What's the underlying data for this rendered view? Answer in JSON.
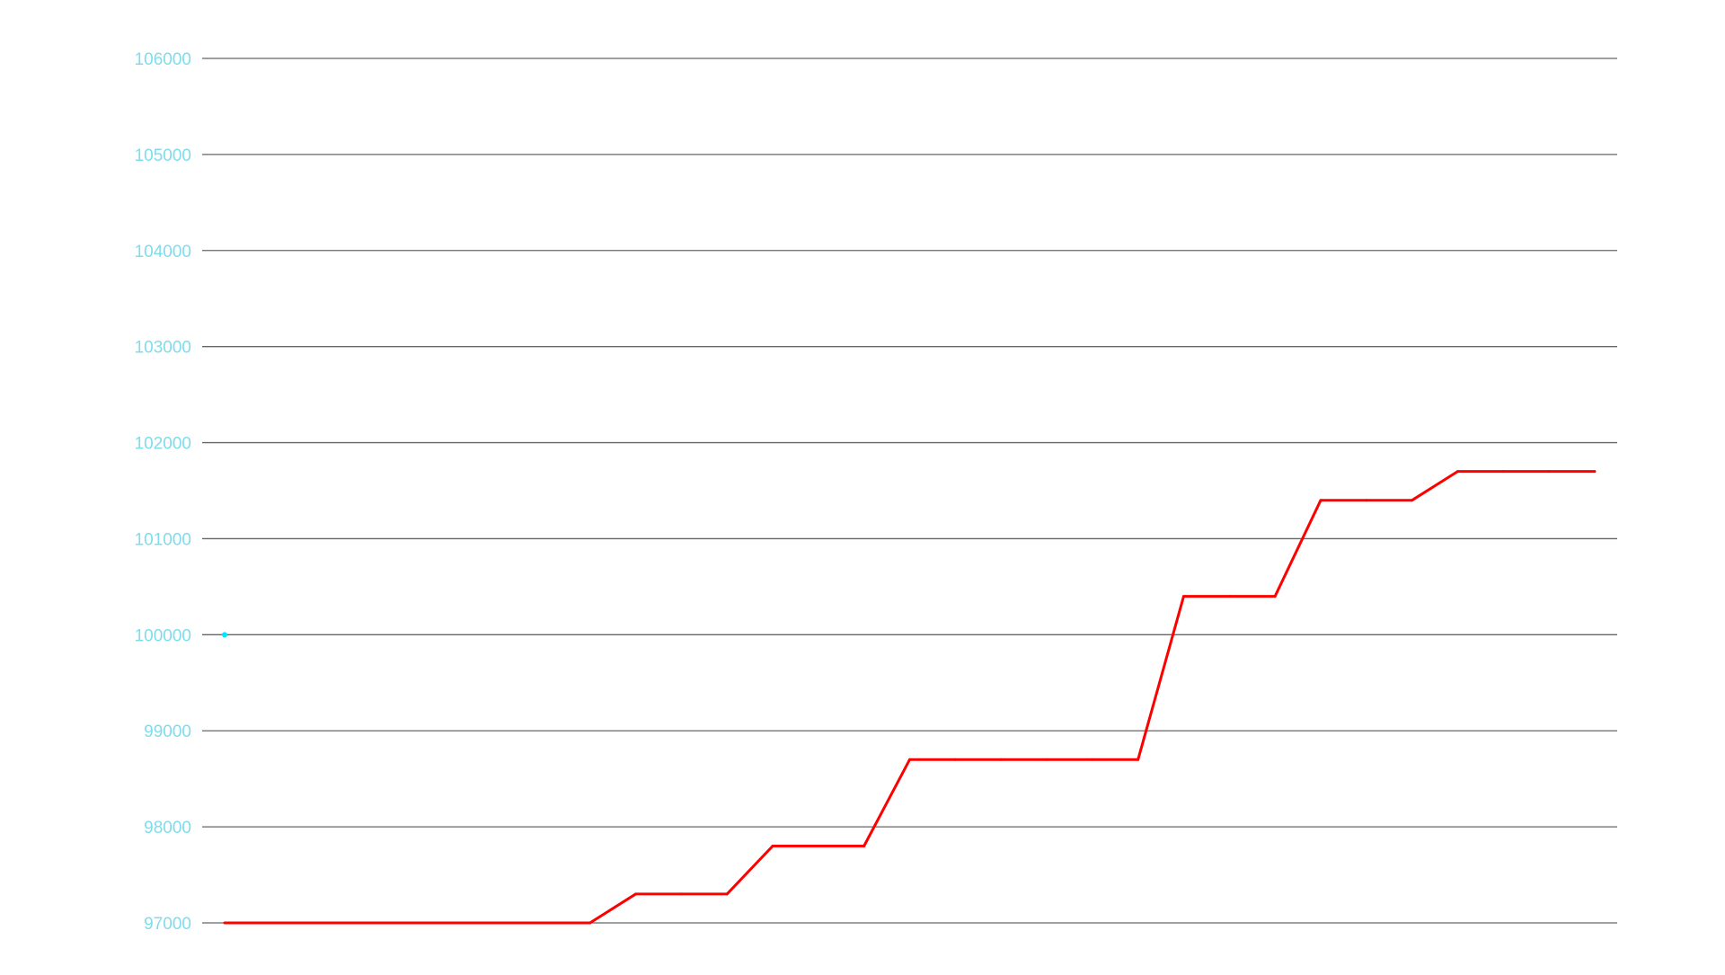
{
  "chart_data": {
    "type": "line",
    "title": "",
    "xlabel": "",
    "ylabel": "",
    "ylim": [
      97000,
      106000
    ],
    "y_ticks": [
      97000,
      98000,
      99000,
      100000,
      101000,
      102000,
      103000,
      104000,
      105000,
      106000
    ],
    "y_tick_labels": [
      "97000",
      "98000",
      "99000",
      "100000",
      "101000",
      "102000",
      "103000",
      "104000",
      "105000",
      "106000"
    ],
    "grid": true,
    "legend": "none",
    "colors": {
      "tick_label": "#7fdcec",
      "grid": "#666666",
      "line": "#ff0000",
      "marker": "#00e5ff"
    },
    "series": [
      {
        "x": [
          0,
          1,
          2,
          3,
          4,
          5,
          6,
          7,
          8,
          9,
          10,
          11,
          12,
          13,
          14,
          15,
          16,
          17,
          18,
          19,
          20,
          21,
          22,
          23,
          24,
          25,
          26,
          27,
          28,
          29,
          30
        ],
        "values": [
          97000,
          97000,
          97000,
          97000,
          97000,
          97000,
          97000,
          97000,
          97000,
          97300,
          97300,
          97300,
          97800,
          97800,
          97800,
          98700,
          98700,
          98700,
          98700,
          98700,
          98700,
          100400,
          100400,
          100400,
          101400,
          101400,
          101400,
          101700,
          101700,
          101700,
          101700
        ]
      }
    ],
    "marker_point": {
      "x": 0,
      "y": 100000
    }
  }
}
